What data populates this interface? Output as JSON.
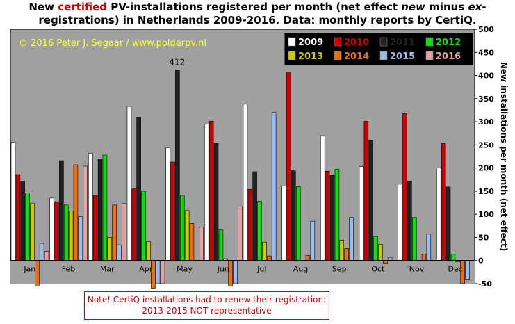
{
  "title": {
    "t1": "New ",
    "t2": "certified",
    "t3": " PV-installations registered per month (net effect ",
    "t4": "new",
    "t5": " minus ",
    "t6": "ex",
    "t7": "-",
    "line2": "registrations) in Netherlands 2009-2016. Data: monthly reports by CertiQ."
  },
  "copyright": "© 2016 Peter J. Segaar / www.polderpv.nl",
  "note": {
    "line1": "Note! CertiQ installations  had to renew  their registration:",
    "line2": "2013-2015  NOT representative"
  },
  "chart_data": {
    "type": "bar",
    "title": "",
    "xlabel": "",
    "ylabel": "New installations  per month  (net effect)",
    "ylim": [
      -50,
      500
    ],
    "y_ticks": [
      -50,
      0,
      50,
      100,
      150,
      200,
      250,
      300,
      350,
      400,
      450,
      500
    ],
    "grid": false,
    "legend_position": "top-right",
    "categories": [
      "Jan",
      "Feb",
      "Mar",
      "Apr",
      "May",
      "Jun",
      "Jul",
      "Aug",
      "Sep",
      "Oct",
      "Nov",
      "Dec"
    ],
    "annotation": {
      "text": "412",
      "category": "May",
      "series": "2011"
    },
    "series": [
      {
        "name": "2009",
        "color": "#ffffff",
        "values": [
          256,
          135,
          232,
          333,
          244,
          295,
          338,
          161,
          270,
          203,
          165,
          200
        ]
      },
      {
        "name": "2010",
        "color": "#cc0000",
        "values": [
          186,
          127,
          141,
          155,
          213,
          301,
          154,
          406,
          193,
          301,
          318,
          253
        ]
      },
      {
        "name": "2011",
        "color": "#222222",
        "values": [
          172,
          216,
          220,
          310,
          412,
          253,
          192,
          194,
          184,
          260,
          172,
          159
        ]
      },
      {
        "name": "2012",
        "color": "#11dd11",
        "values": [
          146,
          120,
          228,
          150,
          141,
          67,
          128,
          160,
          197,
          52,
          93,
          14
        ]
      },
      {
        "name": "2013",
        "color": "#cccc00",
        "values": [
          123,
          107,
          50,
          41,
          108,
          4,
          40,
          0,
          44,
          35,
          0,
          -3
        ]
      },
      {
        "name": "2014",
        "color": "#e87010",
        "values": [
          -55,
          207,
          120,
          -60,
          80,
          -55,
          10,
          11,
          26,
          -6,
          14,
          -50
        ]
      },
      {
        "name": "2015",
        "color": "#99bbee",
        "values": [
          37,
          95,
          34,
          -50,
          0,
          -50,
          320,
          85,
          93,
          7,
          57,
          -40
        ]
      },
      {
        "name": "2016",
        "color": "#e6a0a0",
        "values": [
          20,
          204,
          124,
          -50,
          72,
          118,
          0,
          0,
          0,
          0,
          0,
          0
        ]
      }
    ]
  }
}
